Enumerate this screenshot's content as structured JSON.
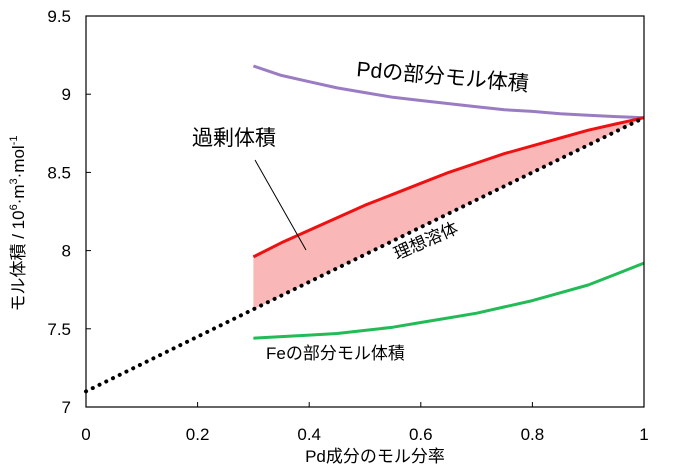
{
  "chart_data": {
    "type": "line",
    "xlabel": "Pd成分のモル分率",
    "ylabel": {
      "prefix": "モル体積 / 10",
      "sup1": "6",
      "mid": "·m",
      "sup2": "3",
      "mid2": "·mol",
      "sup3": "-1"
    },
    "xlim": [
      0,
      1
    ],
    "ylim": [
      7,
      9.5
    ],
    "xticks": [
      0,
      0.2,
      0.4,
      0.6,
      0.8,
      1
    ],
    "xtick_labels": [
      "0",
      "0.2",
      "0.4",
      "0.6",
      "0.8",
      "1"
    ],
    "yticks": [
      7,
      7.5,
      8,
      8.5,
      9,
      9.5
    ],
    "ytick_labels": [
      "7",
      "7.5",
      "8",
      "8.5",
      "9",
      "9.5"
    ],
    "grid": false,
    "series": [
      {
        "name": "Pdの部分モル体積",
        "color": "#9a7cc4",
        "style": "solid",
        "x": [
          0.3,
          0.35,
          0.4,
          0.45,
          0.5,
          0.55,
          0.6,
          0.65,
          0.7,
          0.75,
          0.8,
          0.85,
          0.9,
          0.95,
          1.0
        ],
        "y": [
          9.18,
          9.12,
          9.08,
          9.04,
          9.01,
          8.98,
          8.96,
          8.94,
          8.92,
          8.9,
          8.89,
          8.875,
          8.865,
          8.857,
          8.85
        ]
      },
      {
        "name": "",
        "color": "#ee1111",
        "style": "solid",
        "x": [
          0.3,
          0.35,
          0.4,
          0.45,
          0.5,
          0.55,
          0.6,
          0.65,
          0.7,
          0.75,
          0.8,
          0.85,
          0.9,
          0.95,
          1.0
        ],
        "y": [
          7.96,
          8.05,
          8.13,
          8.21,
          8.29,
          8.36,
          8.43,
          8.5,
          8.56,
          8.62,
          8.67,
          8.72,
          8.77,
          8.81,
          8.85
        ]
      },
      {
        "name": "理想溶体",
        "color": "#000000",
        "style": "dotted",
        "x": [
          0,
          1
        ],
        "y": [
          7.1,
          8.85
        ]
      },
      {
        "name": "Feの部分モル体積",
        "color": "#22bb55",
        "style": "solid",
        "x": [
          0.3,
          0.35,
          0.4,
          0.45,
          0.5,
          0.55,
          0.6,
          0.65,
          0.7,
          0.75,
          0.8,
          0.85,
          0.9,
          0.95,
          1.0
        ],
        "y": [
          7.44,
          7.45,
          7.46,
          7.47,
          7.49,
          7.51,
          7.54,
          7.57,
          7.6,
          7.64,
          7.68,
          7.73,
          7.78,
          7.85,
          7.92
        ]
      }
    ],
    "shaded_region": {
      "name": "過剰体積",
      "fill": "#f9b7b7",
      "between": [
        "red-curve",
        "ideal-line"
      ],
      "x_from": 0.3,
      "x_to": 1.0
    },
    "annotations": [
      {
        "id": "pd",
        "text": "Pdの部分モル体積"
      },
      {
        "id": "excess",
        "text": "過剰体積"
      },
      {
        "id": "ideal",
        "text": "理想溶体"
      },
      {
        "id": "fe",
        "text": "Feの部分モル体積"
      }
    ]
  }
}
